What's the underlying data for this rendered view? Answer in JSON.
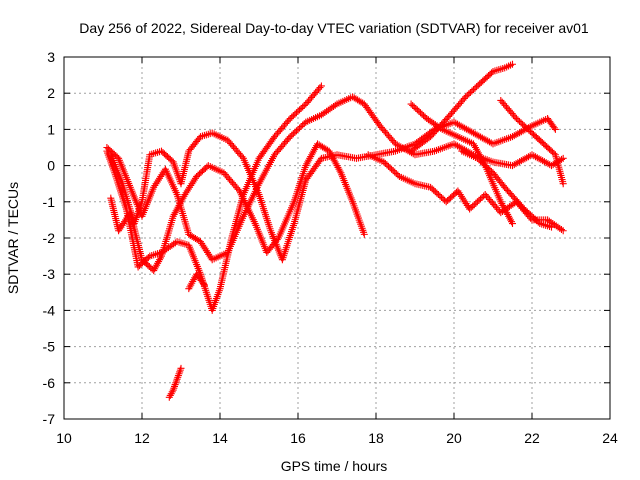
{
  "chart_data": {
    "type": "scatter",
    "title": "Day 256 of 2022, Sidereal Day-to-day VTEC variation (SDTVAR) for receiver av01",
    "xlabel": "GPS time / hours",
    "ylabel": "SDTVAR / TECUs",
    "xlim": [
      10,
      24
    ],
    "ylim": [
      -7,
      3
    ],
    "x_ticks": [
      "10",
      "12",
      "14",
      "16",
      "18",
      "20",
      "22",
      "24"
    ],
    "y_ticks": [
      "3",
      "2",
      "1",
      "0",
      "-1",
      "-2",
      "-3",
      "-4",
      "-5",
      "-6",
      "-7"
    ],
    "grid": true,
    "marker": "plus",
    "color": "#ff0000",
    "series": [
      {
        "name": "sat-a",
        "points": [
          [
            11.1,
            0.4
          ],
          [
            11.3,
            -0.2
          ],
          [
            11.6,
            -1.2
          ],
          [
            11.9,
            -2.8
          ],
          [
            12.2,
            -2.5
          ],
          [
            12.5,
            -2.4
          ],
          [
            12.9,
            -2.1
          ],
          [
            13.2,
            -2.2
          ],
          [
            13.5,
            -3.0
          ],
          [
            13.8,
            -4.0
          ],
          [
            14.0,
            -3.4
          ],
          [
            14.3,
            -2.0
          ],
          [
            14.6,
            -0.8
          ],
          [
            15.0,
            0.2
          ],
          [
            15.4,
            0.8
          ],
          [
            15.8,
            1.3
          ],
          [
            16.2,
            1.7
          ],
          [
            16.6,
            2.2
          ]
        ]
      },
      {
        "name": "sat-b",
        "points": [
          [
            11.1,
            0.5
          ],
          [
            11.4,
            0.2
          ],
          [
            11.7,
            -0.6
          ],
          [
            12.0,
            -1.4
          ],
          [
            12.3,
            -0.6
          ],
          [
            12.6,
            -0.1
          ],
          [
            12.9,
            -0.8
          ],
          [
            13.2,
            -1.9
          ],
          [
            13.5,
            -2.1
          ],
          [
            13.8,
            -2.6
          ],
          [
            14.2,
            -2.4
          ],
          [
            14.6,
            -1.4
          ],
          [
            15.0,
            -0.5
          ],
          [
            15.4,
            0.3
          ],
          [
            15.8,
            0.8
          ],
          [
            16.2,
            1.2
          ],
          [
            16.6,
            1.4
          ],
          [
            17.0,
            1.7
          ],
          [
            17.4,
            1.9
          ],
          [
            17.7,
            1.7
          ],
          [
            18.1,
            1.1
          ],
          [
            18.5,
            0.6
          ],
          [
            19.0,
            0.3
          ],
          [
            19.5,
            0.4
          ],
          [
            20.0,
            0.6
          ],
          [
            20.5,
            0.3
          ],
          [
            21.0,
            0.1
          ],
          [
            21.5,
            0.0
          ],
          [
            22.0,
            0.3
          ],
          [
            22.5,
            0.0
          ],
          [
            22.8,
            0.2
          ]
        ]
      },
      {
        "name": "sat-c",
        "points": [
          [
            11.2,
            0.3
          ],
          [
            11.5,
            -0.5
          ],
          [
            11.8,
            -1.6
          ],
          [
            12.0,
            -1.0
          ],
          [
            12.2,
            0.3
          ],
          [
            12.5,
            0.4
          ],
          [
            12.8,
            0.1
          ],
          [
            13.0,
            -0.5
          ],
          [
            13.2,
            0.4
          ],
          [
            13.5,
            0.8
          ],
          [
            13.8,
            0.9
          ],
          [
            14.2,
            0.7
          ],
          [
            14.6,
            0.2
          ],
          [
            15.0,
            -0.8
          ],
          [
            15.3,
            -1.8
          ],
          [
            15.6,
            -2.6
          ],
          [
            15.9,
            -1.6
          ],
          [
            16.2,
            -0.4
          ],
          [
            16.6,
            0.2
          ],
          [
            17.0,
            0.3
          ],
          [
            17.5,
            0.2
          ],
          [
            18.0,
            0.3
          ],
          [
            18.5,
            0.4
          ],
          [
            19.0,
            0.6
          ],
          [
            19.5,
            1.0
          ],
          [
            20.0,
            1.2
          ],
          [
            20.5,
            0.9
          ],
          [
            21.0,
            0.6
          ],
          [
            21.5,
            0.8
          ],
          [
            22.0,
            1.1
          ],
          [
            22.4,
            1.3
          ],
          [
            22.6,
            1.0
          ]
        ]
      },
      {
        "name": "sat-d",
        "points": [
          [
            11.2,
            -0.9
          ],
          [
            11.4,
            -1.8
          ],
          [
            11.7,
            -1.3
          ],
          [
            12.0,
            -2.6
          ],
          [
            12.3,
            -2.9
          ],
          [
            12.5,
            -2.5
          ],
          [
            12.8,
            -1.4
          ],
          [
            13.1,
            -0.8
          ],
          [
            13.4,
            -0.3
          ],
          [
            13.7,
            0.0
          ],
          [
            14.1,
            -0.2
          ],
          [
            14.5,
            -0.7
          ],
          [
            14.9,
            -1.6
          ],
          [
            15.2,
            -2.4
          ],
          [
            15.5,
            -2.0
          ],
          [
            15.9,
            -1.0
          ],
          [
            16.2,
            0.0
          ],
          [
            16.5,
            0.6
          ],
          [
            16.8,
            0.4
          ],
          [
            17.1,
            -0.2
          ],
          [
            17.4,
            -1.0
          ],
          [
            17.7,
            -1.9
          ]
        ]
      },
      {
        "name": "sat-e",
        "points": [
          [
            17.8,
            0.3
          ],
          [
            18.2,
            0.1
          ],
          [
            18.6,
            -0.3
          ],
          [
            19.0,
            -0.5
          ],
          [
            19.4,
            -0.6
          ],
          [
            19.8,
            -1.0
          ],
          [
            20.1,
            -0.7
          ],
          [
            20.4,
            -1.2
          ],
          [
            20.8,
            -0.8
          ],
          [
            21.2,
            -1.3
          ],
          [
            21.6,
            -1.0
          ],
          [
            22.0,
            -1.5
          ],
          [
            22.4,
            -1.5
          ],
          [
            22.8,
            -1.8
          ]
        ]
      },
      {
        "name": "sat-f",
        "points": [
          [
            18.9,
            1.7
          ],
          [
            19.3,
            1.3
          ],
          [
            19.7,
            1.0
          ],
          [
            20.1,
            0.8
          ],
          [
            20.5,
            0.6
          ],
          [
            20.8,
            0.0
          ],
          [
            21.2,
            -1.0
          ],
          [
            21.5,
            -1.6
          ]
        ]
      },
      {
        "name": "sat-g",
        "points": [
          [
            18.9,
            0.4
          ],
          [
            19.4,
            0.8
          ],
          [
            19.9,
            1.4
          ],
          [
            20.3,
            1.9
          ],
          [
            20.7,
            2.3
          ],
          [
            21.0,
            2.6
          ],
          [
            21.3,
            2.7
          ],
          [
            21.5,
            2.8
          ]
        ]
      },
      {
        "name": "sat-h",
        "points": [
          [
            20.2,
            0.4
          ],
          [
            20.6,
            0.2
          ],
          [
            21.0,
            -0.2
          ],
          [
            21.3,
            -0.6
          ],
          [
            21.8,
            -1.2
          ],
          [
            22.2,
            -1.6
          ],
          [
            22.5,
            -1.7
          ]
        ]
      },
      {
        "name": "sat-i",
        "points": [
          [
            21.2,
            1.8
          ],
          [
            21.6,
            1.3
          ],
          [
            22.0,
            0.9
          ],
          [
            22.3,
            0.6
          ],
          [
            22.6,
            0.3
          ],
          [
            22.8,
            -0.5
          ]
        ]
      },
      {
        "name": "sat-j",
        "points": [
          [
            12.7,
            -6.4
          ],
          [
            12.8,
            -6.2
          ],
          [
            12.9,
            -5.9
          ],
          [
            13.0,
            -5.6
          ]
        ]
      },
      {
        "name": "sat-k",
        "points": [
          [
            13.2,
            -3.4
          ],
          [
            13.4,
            -3.0
          ],
          [
            13.6,
            -3.3
          ]
        ]
      }
    ]
  }
}
